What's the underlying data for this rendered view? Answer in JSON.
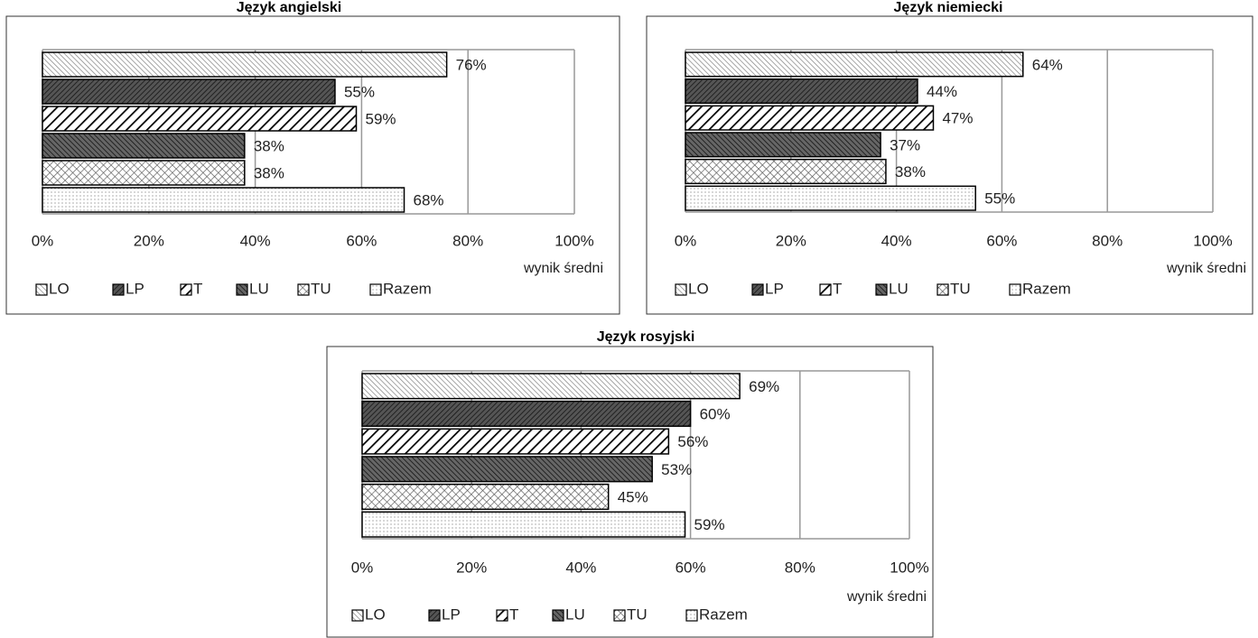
{
  "chart_data": [
    {
      "type": "bar",
      "title": "Język angielski",
      "x_label": "wynik średni",
      "categories": [
        null
      ],
      "xlim": [
        0,
        100
      ],
      "xticks": [
        {
          "value": 0,
          "label": "0%"
        },
        {
          "value": 20,
          "label": "20%"
        },
        {
          "value": 40,
          "label": "40%"
        },
        {
          "value": 60,
          "label": "60%"
        },
        {
          "value": 80,
          "label": "80%"
        },
        {
          "value": 100,
          "label": "100%"
        }
      ],
      "grid": true,
      "series": [
        {
          "name": "LO",
          "pattern": "p-lo",
          "values": [
            76
          ],
          "value_labels": [
            "76%"
          ]
        },
        {
          "name": "LP",
          "pattern": "p-lp",
          "values": [
            55
          ],
          "value_labels": [
            "55%"
          ]
        },
        {
          "name": "T",
          "pattern": "p-t",
          "values": [
            59
          ],
          "value_labels": [
            "59%"
          ]
        },
        {
          "name": "LU",
          "pattern": "p-lu",
          "values": [
            38
          ],
          "value_labels": [
            "38%"
          ]
        },
        {
          "name": "TU",
          "pattern": "p-tu",
          "values": [
            38
          ],
          "value_labels": [
            "38%"
          ]
        },
        {
          "name": "Razem",
          "pattern": "p-razem",
          "values": [
            68
          ],
          "value_labels": [
            "68%"
          ]
        }
      ]
    },
    {
      "type": "bar",
      "title": "Język niemiecki",
      "x_label": "wynik średni",
      "categories": [
        null
      ],
      "xlim": [
        0,
        100
      ],
      "xticks": [
        {
          "value": 0,
          "label": "0%"
        },
        {
          "value": 20,
          "label": "20%"
        },
        {
          "value": 40,
          "label": "40%"
        },
        {
          "value": 60,
          "label": "60%"
        },
        {
          "value": 80,
          "label": "80%"
        },
        {
          "value": 100,
          "label": "100%"
        }
      ],
      "grid": true,
      "series": [
        {
          "name": "LO",
          "pattern": "p-lo",
          "values": [
            64
          ],
          "value_labels": [
            "64%"
          ]
        },
        {
          "name": "LP",
          "pattern": "p-lp",
          "values": [
            44
          ],
          "value_labels": [
            "44%"
          ]
        },
        {
          "name": "T",
          "pattern": "p-t",
          "values": [
            47
          ],
          "value_labels": [
            "47%"
          ]
        },
        {
          "name": "LU",
          "pattern": "p-lu",
          "values": [
            37
          ],
          "value_labels": [
            "37%"
          ]
        },
        {
          "name": "TU",
          "pattern": "p-tu",
          "values": [
            38
          ],
          "value_labels": [
            "38%"
          ]
        },
        {
          "name": "Razem",
          "pattern": "p-razem",
          "values": [
            55
          ],
          "value_labels": [
            "55%"
          ]
        }
      ]
    },
    {
      "type": "bar",
      "title": "Język rosyjski",
      "x_label": "wynik średni",
      "categories": [
        null
      ],
      "xlim": [
        0,
        100
      ],
      "xticks": [
        {
          "value": 0,
          "label": "0%"
        },
        {
          "value": 20,
          "label": "20%"
        },
        {
          "value": 40,
          "label": "40%"
        },
        {
          "value": 60,
          "label": "60%"
        },
        {
          "value": 80,
          "label": "80%"
        },
        {
          "value": 100,
          "label": "100%"
        }
      ],
      "grid": true,
      "series": [
        {
          "name": "LO",
          "pattern": "p-lo",
          "values": [
            69
          ],
          "value_labels": [
            "69%"
          ]
        },
        {
          "name": "LP",
          "pattern": "p-lp",
          "values": [
            60
          ],
          "value_labels": [
            "60%"
          ]
        },
        {
          "name": "T",
          "pattern": "p-t",
          "values": [
            56
          ],
          "value_labels": [
            "56%"
          ]
        },
        {
          "name": "LU",
          "pattern": "p-lu",
          "values": [
            53
          ],
          "value_labels": [
            "53%"
          ]
        },
        {
          "name": "TU",
          "pattern": "p-tu",
          "values": [
            45
          ],
          "value_labels": [
            "45%"
          ]
        },
        {
          "name": "Razem",
          "pattern": "p-razem",
          "values": [
            59
          ],
          "value_labels": [
            "59%"
          ]
        }
      ]
    }
  ]
}
